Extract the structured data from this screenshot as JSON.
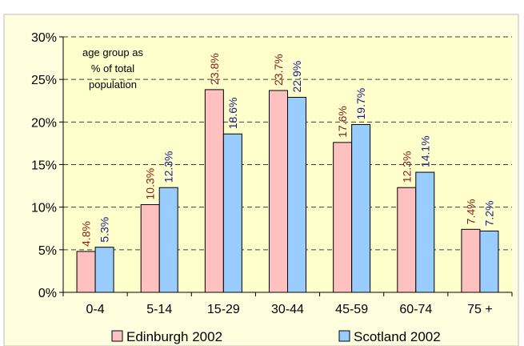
{
  "chart_data": {
    "type": "bar",
    "title": "",
    "xlabel": "",
    "ylabel": "",
    "categories": [
      "0-4",
      "5-14",
      "15-29",
      "30-44",
      "45-59",
      "60-74",
      "75 +"
    ],
    "series": [
      {
        "name": "Edinburgh 2002",
        "values": [
          4.8,
          10.3,
          23.8,
          23.7,
          17.6,
          12.3,
          7.4
        ],
        "labels": [
          "4.8%",
          "10.3%",
          "23.8%",
          "23.7%",
          "17.6%",
          "12.3%",
          "7.4%"
        ],
        "color": "#ffc0c0",
        "label_color": "#8b1a1a"
      },
      {
        "name": "Scotland 2002",
        "values": [
          5.3,
          12.3,
          18.6,
          22.9,
          19.7,
          14.1,
          7.2
        ],
        "labels": [
          "5.3%",
          "12.3%",
          "18.6%",
          "22.9%",
          "19.7%",
          "14.1%",
          "7.2%"
        ],
        "color": "#99ccff",
        "label_color": "#1a1a8b"
      }
    ],
    "ylim": [
      0,
      30
    ],
    "yticks": [
      "0%",
      "5%",
      "10%",
      "15%",
      "20%",
      "25%",
      "30%"
    ],
    "annotation": [
      "age group as",
      "% of total",
      "population"
    ],
    "grid": true,
    "legend_position": "bottom",
    "colors": {
      "plot_background": "#ffffcc",
      "outer_background": "#ffffe0",
      "gridline": "#000000"
    }
  }
}
